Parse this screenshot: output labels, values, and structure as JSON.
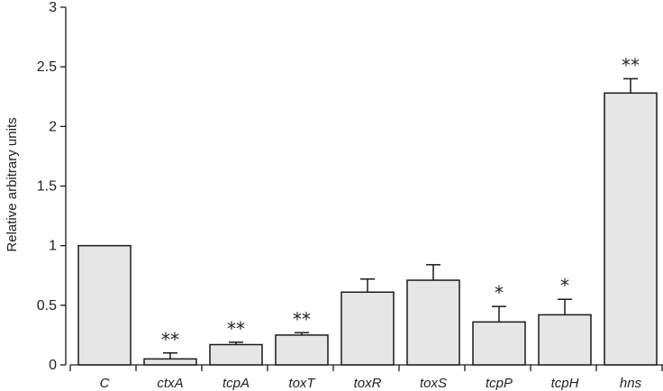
{
  "chart_data": {
    "type": "bar",
    "title": "",
    "xlabel": "",
    "ylabel": "Relative arbitrary units",
    "ylim": [
      0,
      3
    ],
    "yticks": [
      0,
      0.5,
      1,
      1.5,
      2,
      2.5,
      3
    ],
    "ytick_labels": [
      "0",
      "0.5",
      "1",
      "1.5",
      "2",
      "2.5",
      "3"
    ],
    "categories": [
      "C",
      "ctxA",
      "tcpA",
      "toxT",
      "toxR",
      "toxS",
      "tcpP",
      "tcpH",
      "hns"
    ],
    "values": [
      1.0,
      0.05,
      0.17,
      0.25,
      0.61,
      0.71,
      0.36,
      0.42,
      2.28
    ],
    "errors": [
      0,
      0.05,
      0.02,
      0.02,
      0.11,
      0.13,
      0.13,
      0.13,
      0.12
    ],
    "significance": [
      "",
      "**",
      "**",
      "**",
      "",
      "",
      "*",
      "*",
      "**"
    ],
    "grid": false,
    "colors": {
      "bar_fill": "#e6e6e6",
      "bar_stroke": "#1a1a1a",
      "axis": "#1a1a1a"
    }
  }
}
